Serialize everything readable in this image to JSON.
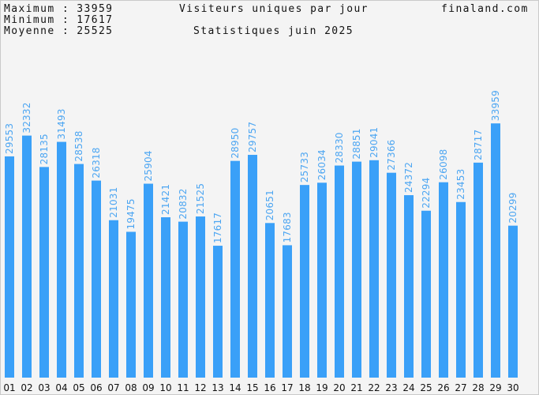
{
  "header": {
    "max_label": "Maximum : 33959",
    "min_label": "Minimum : 17617",
    "avg_label": "Moyenne : 25525",
    "title": "Visiteurs uniques par jour",
    "subtitle": "Statistiques juin 2025",
    "site": "finaland.com"
  },
  "colors": {
    "bar": "#3aa0f8",
    "value_label": "#4da6f2",
    "background": "#f4f4f4"
  },
  "chart_data": {
    "type": "bar",
    "title": "Visiteurs uniques par jour",
    "subtitle": "Statistiques juin 2025",
    "categories": [
      "01",
      "02",
      "03",
      "04",
      "05",
      "06",
      "07",
      "08",
      "09",
      "10",
      "11",
      "12",
      "13",
      "14",
      "15",
      "16",
      "17",
      "18",
      "19",
      "20",
      "21",
      "22",
      "23",
      "24",
      "25",
      "26",
      "27",
      "28",
      "29",
      "30"
    ],
    "values": [
      29553,
      32332,
      28135,
      31493,
      28538,
      26318,
      21031,
      19475,
      25904,
      21421,
      20832,
      21525,
      17617,
      28950,
      29757,
      20651,
      17683,
      25733,
      26034,
      28330,
      28851,
      29041,
      27366,
      24372,
      22294,
      26098,
      23453,
      28717,
      33959,
      20299
    ],
    "ylim": [
      0,
      42000
    ],
    "grid": false,
    "xlabel": "",
    "ylabel": ""
  }
}
